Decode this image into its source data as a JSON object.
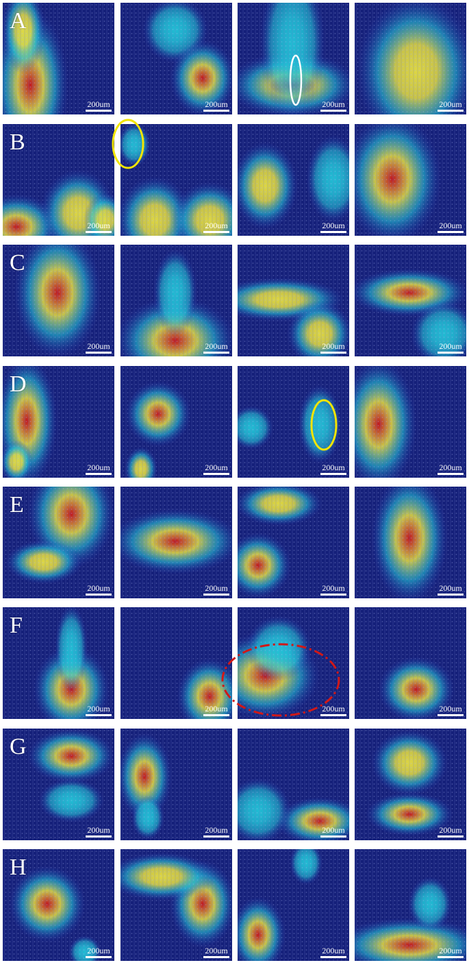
{
  "figure": {
    "rows": [
      {
        "letter": "A",
        "scale_bar": "200um"
      },
      {
        "letter": "B",
        "scale_bar": "200um"
      },
      {
        "letter": "C",
        "scale_bar": "200um"
      },
      {
        "letter": "D",
        "scale_bar": "200um"
      },
      {
        "letter": "E",
        "scale_bar": "200um"
      },
      {
        "letter": "F",
        "scale_bar": "200um"
      },
      {
        "letter": "G",
        "scale_bar": "200um"
      },
      {
        "letter": "H",
        "scale_bar": "200um"
      }
    ],
    "colors": {
      "background": "#15207a",
      "cool": "#2030b0",
      "mid": "#22c4d8",
      "warm": "#e8e040",
      "hot": "#c8161c",
      "marker_white": "#ffffff",
      "marker_yellow": "#f2e500",
      "marker_red_dashed": "#d01818"
    }
  }
}
